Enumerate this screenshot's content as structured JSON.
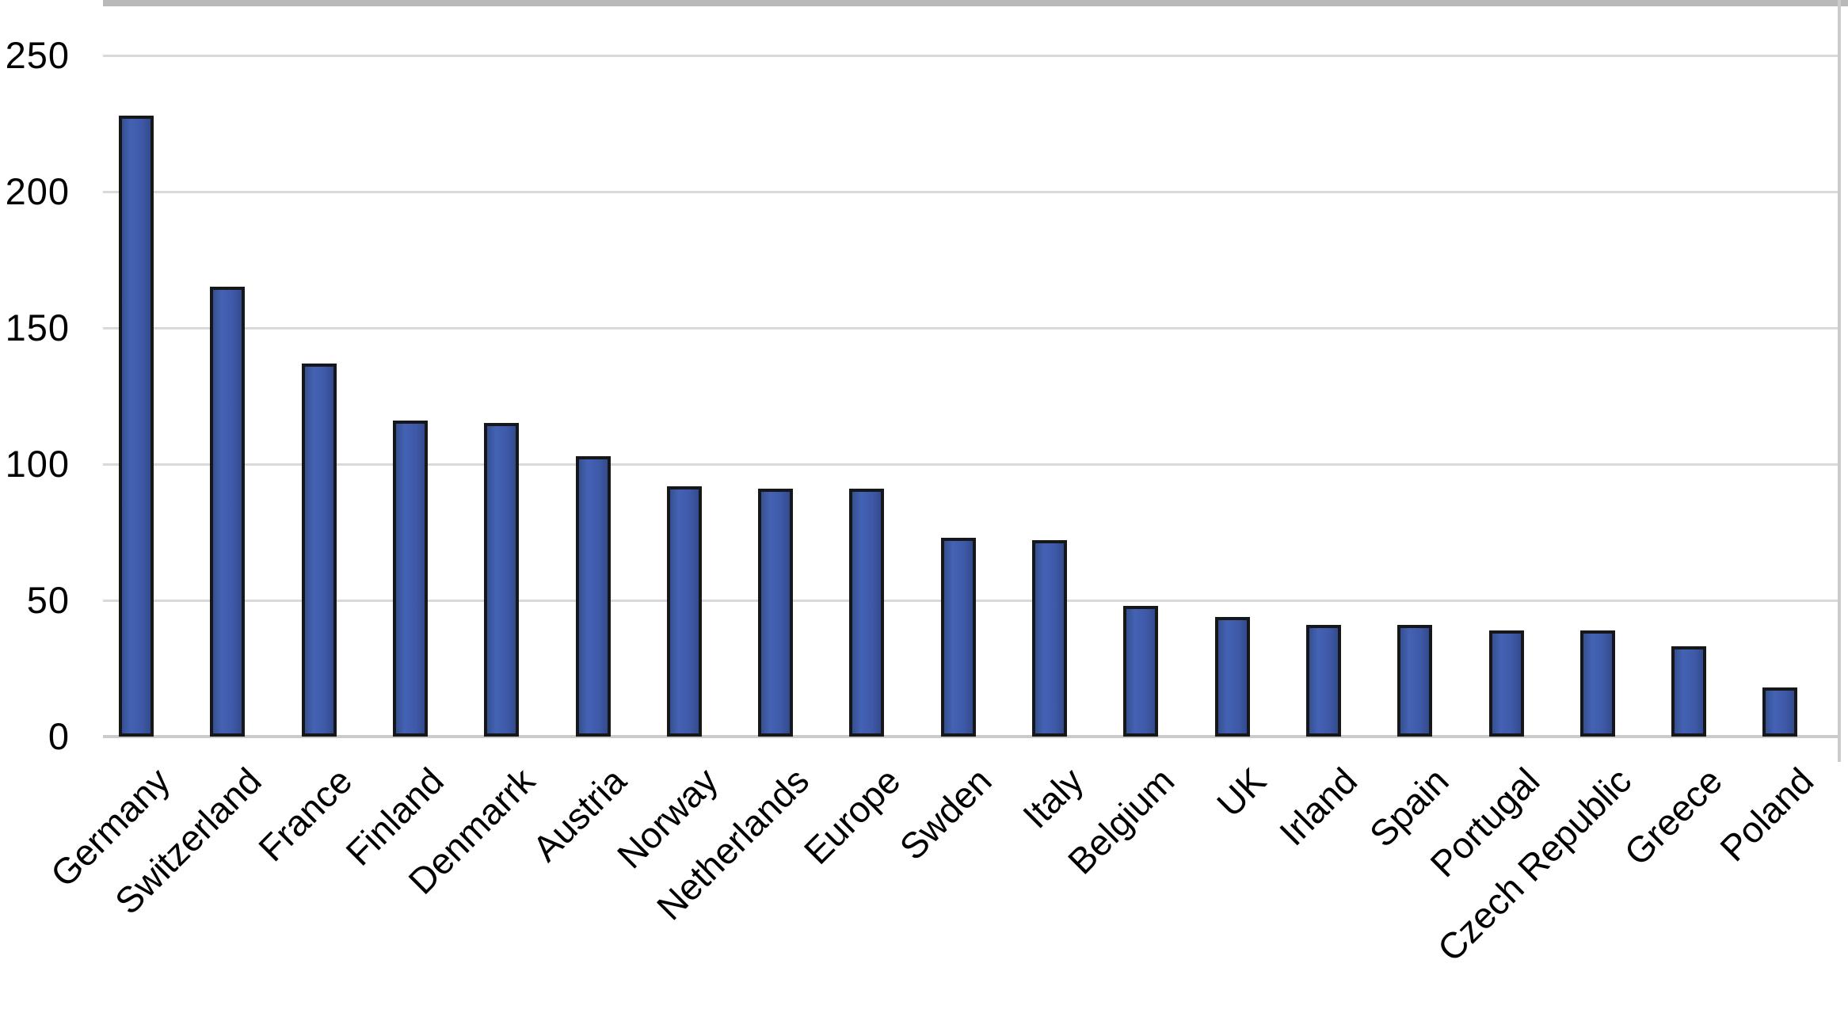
{
  "chart_data": {
    "type": "bar",
    "title": "",
    "xlabel": "",
    "ylabel": "",
    "categories": [
      "Germany",
      "Switzerland",
      "France",
      "Finland",
      "Denmarrk",
      "Austria",
      "Norway",
      "Netherlands",
      "Europe",
      "Swden",
      "Italy",
      "Belgium",
      "UK",
      "Irland",
      "Spain",
      "Portugal",
      "Czech Republic",
      "Greece",
      "Poland"
    ],
    "values": [
      228,
      165,
      137,
      116,
      115,
      103,
      92,
      91,
      91,
      73,
      72,
      48,
      44,
      41,
      41,
      39,
      39,
      33,
      18
    ],
    "ylim": [
      0,
      250
    ],
    "yticks": [
      0,
      50,
      100,
      150,
      200,
      250
    ],
    "ytick_labels": [
      "0",
      "50",
      "100",
      "150",
      "200",
      "250"
    ],
    "grid": true,
    "legend": "none",
    "colors": {
      "bar_fill": "#3E59A8",
      "bar_border": "#15171B",
      "gridline": "#D9D9D9",
      "axis_line": "#CBCBCB",
      "plot_top_border": "#B9B9B9",
      "plot_right_border": "#CBCBCB",
      "label_text": "#000000"
    }
  }
}
